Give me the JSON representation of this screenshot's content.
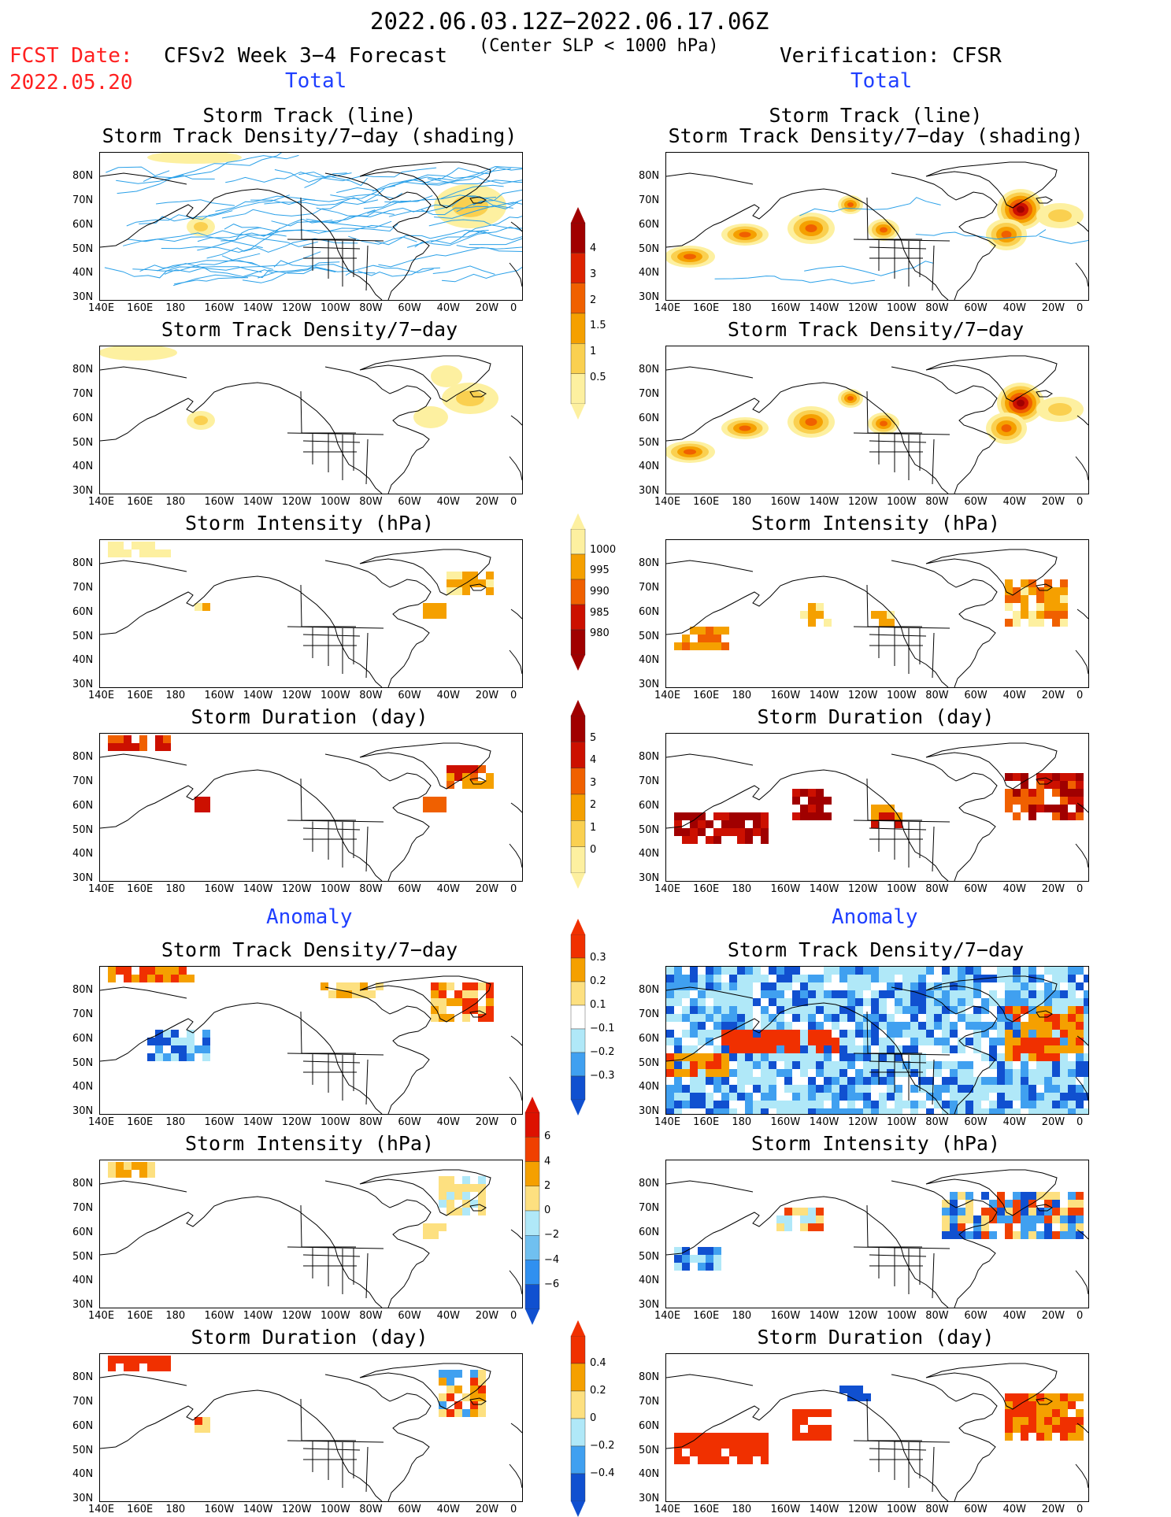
{
  "header": {
    "date_range": "2022.06.03.12Z−2022.06.17.06Z",
    "fcst_label": "FCST Date:",
    "fcst_date": "2022.05.20",
    "model": "CFSv2 Week 3−4 Forecast",
    "criterion": "(Center SLP < 1000 hPa)",
    "verification": "Verification: CFSR",
    "left_total": "Total",
    "right_total": "Total",
    "left_anomaly": "Anomaly",
    "right_anomaly": "Anomaly"
  },
  "panels": {
    "track_title_1": "Storm Track (line)",
    "track_title_2": "Storm Track Density/7−day (shading)",
    "density": "Storm Track Density/7−day",
    "intensity": "Storm Intensity (hPa)",
    "duration": "Storm Duration (day)"
  },
  "axes": {
    "lon_labels": [
      "140E",
      "160E",
      "180",
      "160W",
      "140W",
      "120W",
      "100W",
      "80W",
      "60W",
      "40W",
      "20W",
      "0"
    ],
    "lat_labels": [
      "80N",
      "70N",
      "60N",
      "50N",
      "40N",
      "30N"
    ]
  },
  "colorbars": {
    "density_total": {
      "labels": [
        "4",
        "3",
        "2",
        "1.5",
        "1",
        "0.5"
      ],
      "colors": [
        "#a00000",
        "#dd2200",
        "#f06000",
        "#f5a000",
        "#fad050",
        "#fdf0a0"
      ]
    },
    "intensity_total": {
      "labels": [
        "1000",
        "995",
        "990",
        "985",
        "980"
      ],
      "colors": [
        "#fdf0a0",
        "#f5a000",
        "#f06000",
        "#cc1000",
        "#a00000"
      ]
    },
    "duration_total": {
      "labels": [
        "5",
        "4",
        "3",
        "2",
        "1",
        "0"
      ],
      "colors": [
        "#a00000",
        "#cc1000",
        "#f06000",
        "#f5a000",
        "#fad050",
        "#fdf0a0"
      ]
    },
    "density_anom": {
      "labels": [
        "0.3",
        "0.2",
        "0.1",
        "−0.1",
        "−0.2",
        "−0.3"
      ],
      "colors": [
        "#f03000",
        "#f5a000",
        "#fde080",
        "#ffffff",
        "#b0e8f8",
        "#40a0f0",
        "#1050d0"
      ]
    },
    "intensity_anom": {
      "labels": [
        "6",
        "4",
        "2",
        "0",
        "−2",
        "−4",
        "−6"
      ],
      "colors": [
        "#dd1100",
        "#f04000",
        "#f5a000",
        "#fde080",
        "#b0e8f8",
        "#70c0f0",
        "#3090f0",
        "#1050d0"
      ]
    },
    "duration_anom": {
      "labels": [
        "0.4",
        "0.2",
        "0",
        "−0.2",
        "−0.4"
      ],
      "colors": [
        "#f03000",
        "#f5a000",
        "#fde080",
        "#b0e8f8",
        "#40a0f0",
        "#1050d0"
      ]
    }
  },
  "chart_data": {
    "type": "heatmap",
    "region": "North Pacific / North America / North Atlantic, 140E–0, 25N–85N",
    "fields": [
      "storm track density",
      "storm intensity",
      "storm duration",
      "anomalies"
    ]
  }
}
